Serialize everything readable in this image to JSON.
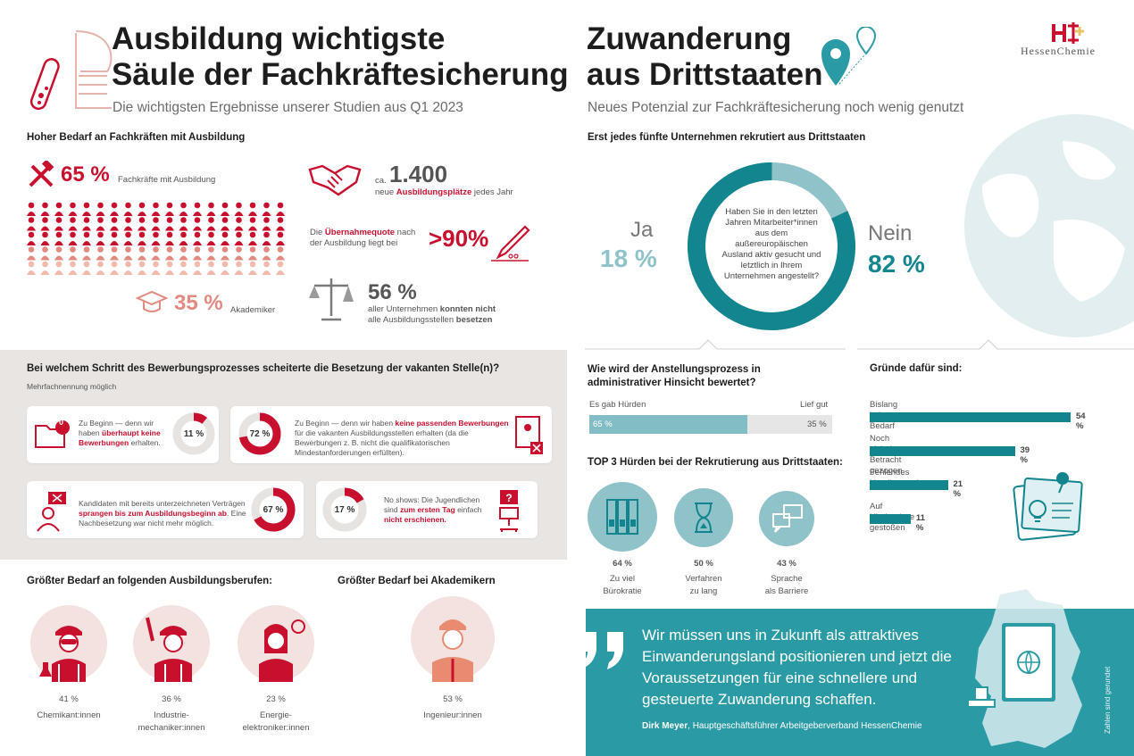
{
  "left": {
    "title_line1": "Ausbildung wichtigste",
    "title_line2": "Säule der Fachkräftesicherung",
    "subtitle": "Die wichtigsten Ergebnisse unserer Studien aus Q1 2023",
    "need_heading": "Hoher Bedarf an Fachkräften mit Ausbildung",
    "share_skilled_pct": "65 %",
    "share_skilled_label": "Fachkräfte mit Ausbildung",
    "share_academic_pct": "35 %",
    "share_academic_label": "Akademiker",
    "apprentice_ca": "ca.",
    "apprentice_value": "1.400",
    "apprentice_pre": "neue",
    "apprentice_bold": "Ausbildungsplätze",
    "apprentice_post": "jedes Jahr",
    "takeover_pre": "Die",
    "takeover_bold": "Übernahmequote",
    "takeover_post": "nach",
    "takeover_line2": "der Ausbildung liegt bei",
    "takeover_value": ">90%",
    "unfilled_value": "56 %",
    "unfilled_line1_pre": "aller Unternehmen",
    "unfilled_line1_bold": "konnten nicht",
    "unfilled_line2_pre": "alle Ausbildungsstellen",
    "unfilled_line2_bold": "besetzen",
    "people_rows": [
      {
        "count": 19,
        "color": "#c8102e"
      },
      {
        "count": 19,
        "color": "#c8102e"
      },
      {
        "count": 19,
        "color": "#c8102e"
      },
      {
        "count": 19,
        "color": "#e28a80"
      },
      {
        "count": 19,
        "color": "#f2b9ad"
      }
    ],
    "process": {
      "question": "Bei welchem Schritt des Bewerbungsprozesses scheiterte die Besetzung der vakanten Stelle(n)?",
      "note": "Mehrfachnennung möglich",
      "c1_pre": "Zu Beginn — denn wir haben",
      "c1_bold": "überhaupt keine Bewerbungen",
      "c1_post": "erhalten.",
      "c1_pct": "11 %",
      "c1_badge": "0",
      "c2_pre": "Zu Beginn — denn wir haben",
      "c2_bold": "keine passenden Bewerbungen",
      "c2_post": "für die vakanten Ausbildungsstellen erhalten (da die Bewerbungen z. B. nicht die qualifikatorischen Mindestanforderungen erfüllten).",
      "c2_pct": "72 %",
      "c3_pre": "Kandidaten mit bereits unterzeichneten Verträgen",
      "c3_bold": "sprangen bis zum Ausbildungsbeginn ab",
      "c3_post": ". Eine Nachbesetzung war nicht mehr möglich.",
      "c3_pct": "67 %",
      "c4_pre": "No shows: Die Jugendlichen sind",
      "c4_bold": "zum ersten Tag",
      "c4_mid": "einfach",
      "c4_bold2": "nicht erschienen.",
      "c4_pct": "17 %"
    },
    "jobs_heading": "Größter Bedarf an folgenden Ausbildungsberufen:",
    "academics_heading": "Größter Bedarf bei Akademikern",
    "jobs": [
      {
        "pct": "41 %",
        "line1": "Chemikant:innen",
        "line2": ""
      },
      {
        "pct": "36 %",
        "line1": "Industrie-",
        "line2": "mechaniker:innen"
      },
      {
        "pct": "23 %",
        "line1": "Energie-",
        "line2": "elektroniker:innen"
      },
      {
        "pct": "53 %",
        "line1": "Ingenieur:innen",
        "line2": ""
      }
    ]
  },
  "right": {
    "title_line1": "Zuwanderung",
    "title_line2": "aus Drittstaaten",
    "subtitle": "Neues Potenzial zur Fachkräftesicherung noch wenig genutzt",
    "logo_text": "HessenChemie",
    "recruit_heading": "Erst jedes fünfte Unternehmen rekrutiert aus Drittstaaten",
    "yes_label": "Ja",
    "yes_pct": "18 %",
    "no_label": "Nein",
    "no_pct": "82 %",
    "donut_question": "Haben Sie in den letzten Jahren Mitarbeiter*innen aus dem außereuropäischen Ausland aktiv gesucht und letztlich in Ihrem Unternehmen angestellt?",
    "admin_heading_1": "Wie wird der Anstellungsprozess in",
    "admin_heading_2": "administrativer Hinsicht bewertet?",
    "admin_left_label": "Es gab Hürden",
    "admin_right_label": "Lief gut",
    "admin_left_pct": "65 %",
    "admin_right_pct": "35 %",
    "admin_fill": 0.65,
    "reasons_heading": "Gründe dafür sind:",
    "reasons": [
      {
        "label": "Bislang kein Bedarf",
        "pct": "54 %",
        "value": 54
      },
      {
        "label": "Noch nicht in Betracht gezogen",
        "pct": "39 %",
        "value": 39
      },
      {
        "label": "Fehlendes Handlungswissen",
        "pct": "21 %",
        "value": 21
      },
      {
        "label": "Auf Hindernisse gestoßen",
        "pct": "11 %",
        "value": 11
      }
    ],
    "hurdles_heading": "TOP 3 Hürden bei der Rekrutierung aus Drittstaaten:",
    "hurdles": [
      {
        "pct": "64 %",
        "line1": "Zu viel",
        "line2": "Bürokratie"
      },
      {
        "pct": "50 %",
        "line1": "Verfahren",
        "line2": "zu lang"
      },
      {
        "pct": "43 %",
        "line1": "Sprache",
        "line2": "als Barriere"
      }
    ],
    "quote": "Wir müssen uns in Zukunft als attraktives Einwanderungsland positionieren und jetzt die Voraussetzungen für eine schnellere und gesteuerte Zuwanderung schaffen.",
    "quote_author": "Dirk Meyer",
    "quote_role": ", Hauptgeschäftsführer Arbeitgeberverband HessenChemie",
    "footnote": "Zahlen sind gerundet",
    "colors": {
      "red": "#c8102e",
      "teal": "#13858f",
      "light_teal": "#82bcc4"
    }
  }
}
